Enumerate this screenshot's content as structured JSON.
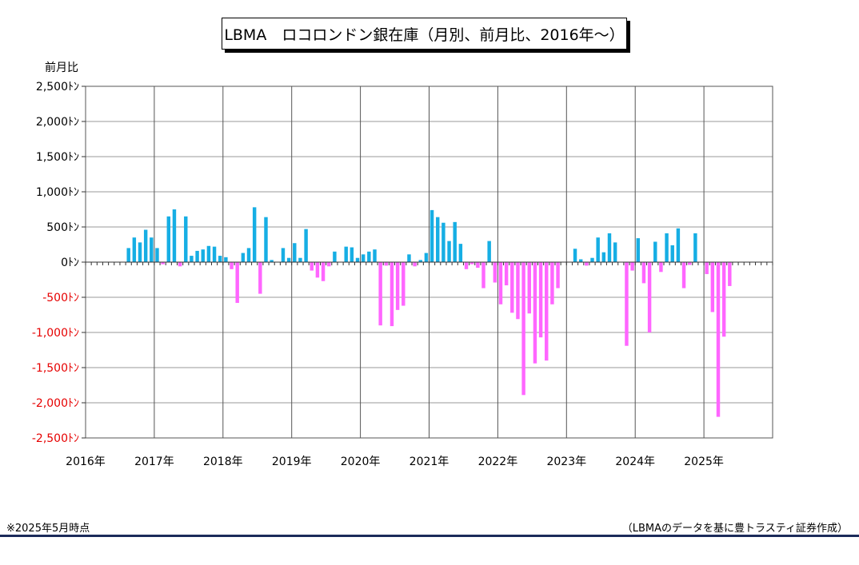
{
  "chart_data": {
    "type": "bar",
    "title": "LBMA　ロコロンドン銀在庫（月別、前月比、2016年～）",
    "ylabel": "前月比",
    "unit_suffix": "ﾄﾝ",
    "ylim": [
      -2500,
      2500
    ],
    "yticks": [
      2500,
      2000,
      1500,
      1000,
      500,
      0,
      -500,
      -1000,
      -1500,
      -2000,
      -2500
    ],
    "ytick_labels": [
      "2,500ﾄﾝ",
      "2,000ﾄﾝ",
      "1,500ﾄﾝ",
      "1,000ﾄﾝ",
      "500ﾄﾝ",
      "0ﾄﾝ",
      "-500ﾄﾝ",
      "-1,000ﾄﾝ",
      "-1,500ﾄﾝ",
      "-2,000ﾄﾝ",
      "-2,500ﾄﾝ"
    ],
    "x_start": "2016-01",
    "x_end": "2025-12",
    "xticks": [
      "2016年",
      "2017年",
      "2018年",
      "2019年",
      "2020年",
      "2021年",
      "2022年",
      "2023年",
      "2024年",
      "2025年"
    ],
    "grid": true,
    "positive_color": "#16aee4",
    "negative_color": "#ff66ff",
    "negative_label_color": "#e60000",
    "months": [
      "2016-01",
      "2016-02",
      "2016-03",
      "2016-04",
      "2016-05",
      "2016-06",
      "2016-07",
      "2016-08",
      "2016-09",
      "2016-10",
      "2016-11",
      "2016-12",
      "2017-01",
      "2017-02",
      "2017-03",
      "2017-04",
      "2017-05",
      "2017-06",
      "2017-07",
      "2017-08",
      "2017-09",
      "2017-10",
      "2017-11",
      "2017-12",
      "2018-01",
      "2018-02",
      "2018-03",
      "2018-04",
      "2018-05",
      "2018-06",
      "2018-07",
      "2018-08",
      "2018-09",
      "2018-10",
      "2018-11",
      "2018-12",
      "2019-01",
      "2019-02",
      "2019-03",
      "2019-04",
      "2019-05",
      "2019-06",
      "2019-07",
      "2019-08",
      "2019-09",
      "2019-10",
      "2019-11",
      "2019-12",
      "2020-01",
      "2020-02",
      "2020-03",
      "2020-04",
      "2020-05",
      "2020-06",
      "2020-07",
      "2020-08",
      "2020-09",
      "2020-10",
      "2020-11",
      "2020-12",
      "2021-01",
      "2021-02",
      "2021-03",
      "2021-04",
      "2021-05",
      "2021-06",
      "2021-07",
      "2021-08",
      "2021-09",
      "2021-10",
      "2021-11",
      "2021-12",
      "2022-01",
      "2022-02",
      "2022-03",
      "2022-04",
      "2022-05",
      "2022-06",
      "2022-07",
      "2022-08",
      "2022-09",
      "2022-10",
      "2022-11",
      "2022-12",
      "2023-01",
      "2023-02",
      "2023-03",
      "2023-04",
      "2023-05",
      "2023-06",
      "2023-07",
      "2023-08",
      "2023-09",
      "2023-10",
      "2023-11",
      "2023-12",
      "2024-01",
      "2024-02",
      "2024-03",
      "2024-04",
      "2024-05",
      "2024-06",
      "2024-07",
      "2024-08",
      "2024-09",
      "2024-10",
      "2024-11",
      "2024-12",
      "2025-01",
      "2025-02",
      "2025-03",
      "2025-04",
      "2025-05"
    ],
    "values": [
      0,
      0,
      0,
      0,
      0,
      0,
      0,
      200,
      350,
      280,
      460,
      350,
      200,
      -30,
      650,
      750,
      -60,
      650,
      90,
      160,
      180,
      230,
      220,
      90,
      70,
      -100,
      -580,
      130,
      200,
      780,
      -450,
      640,
      30,
      0,
      200,
      60,
      270,
      60,
      470,
      -120,
      -220,
      -270,
      -60,
      150,
      0,
      220,
      210,
      60,
      110,
      150,
      180,
      -900,
      -50,
      -910,
      -680,
      -620,
      110,
      -60,
      30,
      130,
      740,
      640,
      560,
      300,
      570,
      260,
      -100,
      -30,
      -80,
      -370,
      300,
      -290,
      -600,
      -330,
      -720,
      -810,
      -1890,
      -730,
      -1440,
      -1070,
      -1400,
      -600,
      -370,
      0,
      0,
      190,
      40,
      -50,
      60,
      350,
      140,
      410,
      280,
      0,
      -1190,
      -120,
      340,
      -300,
      -1000,
      290,
      -140,
      410,
      240,
      480,
      -370,
      -40,
      410,
      0,
      -170,
      -710,
      -2200,
      -1060,
      -340
    ]
  },
  "footer": {
    "note": "※2025年5月時点",
    "source": "（LBMAのデータを基に豊トラスティ証券作成）"
  }
}
